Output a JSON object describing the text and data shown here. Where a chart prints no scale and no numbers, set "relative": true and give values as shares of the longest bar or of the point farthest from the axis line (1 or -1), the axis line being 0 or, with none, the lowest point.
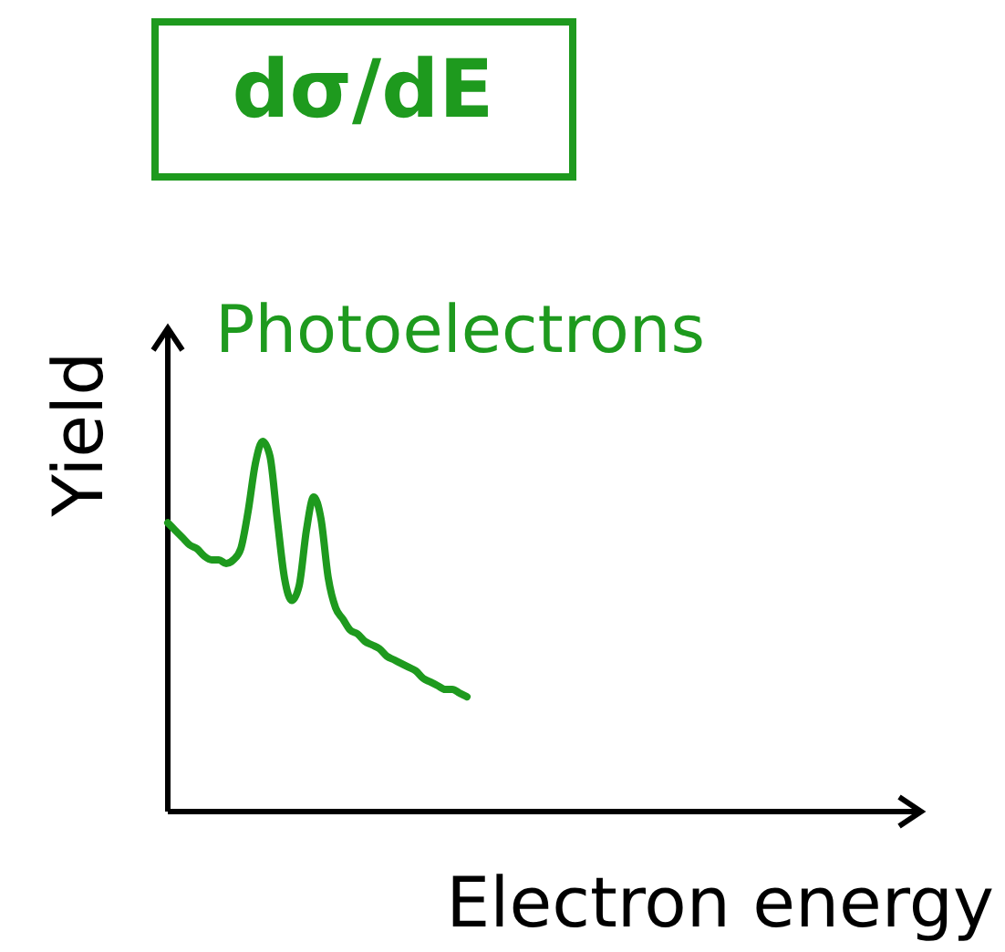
{
  "chart_data": {
    "type": "line",
    "title": "dσ/dE",
    "xlabel": "Electron energy",
    "ylabel": "Yield",
    "relative": true,
    "categories": [
      null,
      null,
      null,
      null,
      null,
      null,
      null,
      null,
      null,
      null,
      null,
      null,
      null,
      null,
      null,
      null,
      null,
      null,
      null,
      null,
      null,
      null,
      null,
      null,
      null,
      null,
      null,
      null,
      null,
      null,
      null,
      null,
      null,
      null,
      null,
      null,
      null,
      null,
      null,
      null,
      null,
      null
    ],
    "series": [
      {
        "name": "Photoelectrons",
        "color": "#1e9a1e",
        "values": [
          0.78,
          0.76,
          0.74,
          0.72,
          0.71,
          0.69,
          0.68,
          0.68,
          0.67,
          0.68,
          0.71,
          0.81,
          0.94,
          1,
          0.96,
          0.79,
          0.63,
          0.57,
          0.61,
          0.76,
          0.85,
          0.79,
          0.63,
          0.55,
          0.52,
          0.49,
          0.48,
          0.46,
          0.45,
          0.44,
          0.42,
          0.41,
          0.4,
          0.39,
          0.38,
          0.36,
          0.35,
          0.34,
          0.33,
          0.33,
          0.32,
          0.31
        ]
      }
    ]
  }
}
